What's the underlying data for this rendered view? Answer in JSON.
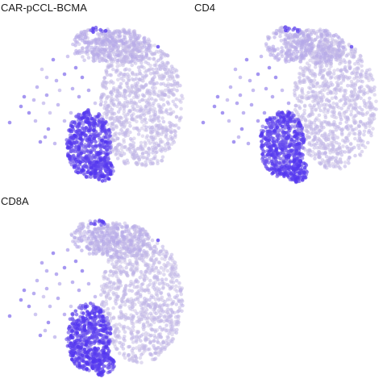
{
  "chart_data": [
    {
      "type": "scatter",
      "title": "CAR-pCCL-BCMA",
      "xlabel": "",
      "ylabel": "",
      "grid": false,
      "legend": "none",
      "colors": {
        "low": "#d6cfe6",
        "high": "#4a2bf0"
      },
      "clusters": [
        {
          "region": "main",
          "expression": "low"
        },
        {
          "region": "top-left-arm",
          "expression": "low-medium"
        },
        {
          "region": "left-lower-lobe",
          "expression": "high"
        },
        {
          "region": "scattered-left",
          "expression": "medium"
        }
      ]
    },
    {
      "type": "scatter",
      "title": "CD4",
      "xlabel": "",
      "ylabel": "",
      "grid": false,
      "legend": "none",
      "colors": {
        "low": "#d6cfe6",
        "high": "#4a2bf0"
      },
      "clusters": [
        {
          "region": "main",
          "expression": "low"
        },
        {
          "region": "top-left-arm",
          "expression": "low-medium"
        },
        {
          "region": "left-lower-lobe",
          "expression": "high"
        },
        {
          "region": "scattered-left",
          "expression": "medium"
        }
      ]
    },
    {
      "type": "scatter",
      "title": "CD8A",
      "xlabel": "",
      "ylabel": "",
      "grid": false,
      "legend": "none",
      "colors": {
        "low": "#d6cfe6",
        "high": "#4a2bf0"
      },
      "clusters": [
        {
          "region": "main",
          "expression": "low"
        },
        {
          "region": "top-left-arm",
          "expression": "low-medium"
        },
        {
          "region": "left-lower-lobe",
          "expression": "high"
        },
        {
          "region": "scattered-left",
          "expression": "medium"
        }
      ]
    }
  ]
}
